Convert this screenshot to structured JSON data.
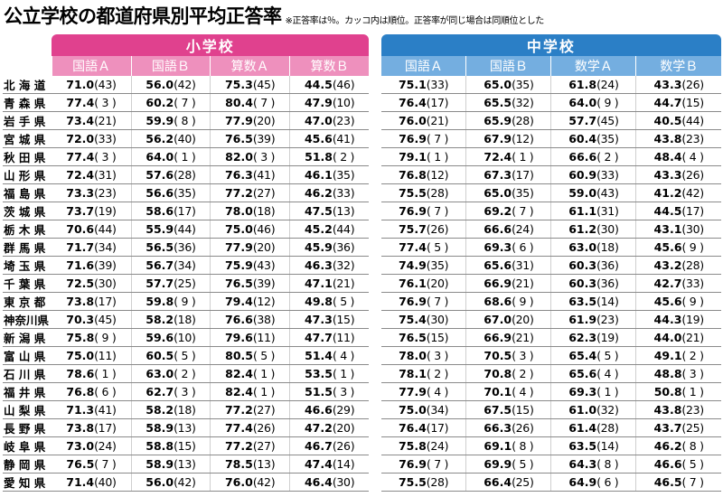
{
  "title": "公立学校の都道府県別平均正答率",
  "note": "※正答率は％。カッコ内は順位。正答率が同じ場合は同順位とした",
  "elementary": {
    "label": "小学校",
    "subjects": [
      "国語Ａ",
      "国語Ｂ",
      "算数Ａ",
      "算数Ｂ"
    ]
  },
  "junior": {
    "label": "中学校",
    "subjects": [
      "国語Ａ",
      "国語Ｂ",
      "数学Ａ",
      "数学Ｂ"
    ]
  },
  "rows": [
    {
      "pref": "北 海 道",
      "el": [
        "71.0",
        "(43)",
        "56.0",
        "(42)",
        "75.3",
        "(45)",
        "44.5",
        "(46)"
      ],
      "jr": [
        "75.1",
        "(33)",
        "65.0",
        "(35)",
        "61.8",
        "(24)",
        "43.3",
        "(26)"
      ]
    },
    {
      "pref": "青 森 県",
      "el": [
        "77.4",
        "( 3 )",
        "60.2",
        "( 7 )",
        "80.4",
        "( 7 )",
        "47.9",
        "(10)"
      ],
      "jr": [
        "76.4",
        "(17)",
        "65.5",
        "(32)",
        "64.0",
        "( 9 )",
        "44.7",
        "(15)"
      ]
    },
    {
      "pref": "岩 手 県",
      "el": [
        "73.4",
        "(21)",
        "59.9",
        "( 8 )",
        "77.9",
        "(20)",
        "47.0",
        "(23)"
      ],
      "jr": [
        "76.0",
        "(21)",
        "65.9",
        "(28)",
        "57.7",
        "(45)",
        "40.5",
        "(44)"
      ]
    },
    {
      "pref": "宮 城 県",
      "el": [
        "72.0",
        "(33)",
        "56.2",
        "(40)",
        "76.5",
        "(39)",
        "45.6",
        "(41)"
      ],
      "jr": [
        "76.9",
        "( 7 )",
        "67.9",
        "(12)",
        "60.4",
        "(35)",
        "43.8",
        "(23)"
      ]
    },
    {
      "pref": "秋 田 県",
      "el": [
        "77.4",
        "( 3 )",
        "64.0",
        "( 1 )",
        "82.0",
        "( 3 )",
        "51.8",
        "( 2 )"
      ],
      "jr": [
        "79.1",
        "( 1 )",
        "72.4",
        "( 1 )",
        "66.6",
        "( 2 )",
        "48.4",
        "( 4 )"
      ]
    },
    {
      "pref": "山 形 県",
      "el": [
        "72.4",
        "(31)",
        "57.6",
        "(28)",
        "76.3",
        "(41)",
        "46.1",
        "(35)"
      ],
      "jr": [
        "76.8",
        "(12)",
        "67.3",
        "(17)",
        "60.9",
        "(33)",
        "43.3",
        "(26)"
      ]
    },
    {
      "pref": "福 島 県",
      "el": [
        "73.3",
        "(23)",
        "56.6",
        "(35)",
        "77.2",
        "(27)",
        "46.2",
        "(33)"
      ],
      "jr": [
        "75.5",
        "(28)",
        "65.0",
        "(35)",
        "59.0",
        "(43)",
        "41.2",
        "(42)"
      ]
    },
    {
      "pref": "茨 城 県",
      "el": [
        "73.7",
        "(19)",
        "58.6",
        "(17)",
        "78.0",
        "(18)",
        "47.5",
        "(13)"
      ],
      "jr": [
        "76.9",
        "( 7 )",
        "69.2",
        "( 7 )",
        "61.1",
        "(31)",
        "44.5",
        "(17)"
      ]
    },
    {
      "pref": "栃 木 県",
      "el": [
        "70.6",
        "(44)",
        "55.9",
        "(44)",
        "75.0",
        "(46)",
        "45.2",
        "(44)"
      ],
      "jr": [
        "75.7",
        "(26)",
        "66.6",
        "(24)",
        "61.2",
        "(30)",
        "43.1",
        "(30)"
      ]
    },
    {
      "pref": "群 馬 県",
      "el": [
        "71.7",
        "(34)",
        "56.5",
        "(36)",
        "77.9",
        "(20)",
        "45.9",
        "(36)"
      ],
      "jr": [
        "77.4",
        "( 5 )",
        "69.3",
        "( 6 )",
        "63.0",
        "(18)",
        "45.6",
        "( 9 )"
      ]
    },
    {
      "pref": "埼 玉 県",
      "el": [
        "71.6",
        "(39)",
        "56.7",
        "(34)",
        "75.9",
        "(43)",
        "46.3",
        "(32)"
      ],
      "jr": [
        "74.9",
        "(35)",
        "65.6",
        "(31)",
        "60.3",
        "(36)",
        "43.2",
        "(28)"
      ]
    },
    {
      "pref": "千 葉 県",
      "el": [
        "72.5",
        "(30)",
        "57.7",
        "(25)",
        "76.5",
        "(39)",
        "47.1",
        "(21)"
      ],
      "jr": [
        "76.1",
        "(20)",
        "66.9",
        "(21)",
        "60.3",
        "(36)",
        "42.7",
        "(33)"
      ]
    },
    {
      "pref": "東 京 都",
      "el": [
        "73.8",
        "(17)",
        "59.8",
        "( 9 )",
        "79.4",
        "(12)",
        "49.8",
        "( 5 )"
      ],
      "jr": [
        "76.9",
        "( 7 )",
        "68.6",
        "( 9 )",
        "63.5",
        "(14)",
        "45.6",
        "( 9 )"
      ]
    },
    {
      "pref": "神奈川県",
      "el": [
        "70.3",
        "(45)",
        "58.2",
        "(18)",
        "76.6",
        "(38)",
        "47.3",
        "(15)"
      ],
      "jr": [
        "75.4",
        "(30)",
        "67.0",
        "(20)",
        "61.9",
        "(23)",
        "44.3",
        "(19)"
      ]
    },
    {
      "pref": "新 潟 県",
      "el": [
        "75.8",
        "( 9 )",
        "59.6",
        "(10)",
        "79.6",
        "(11)",
        "47.7",
        "(11)"
      ],
      "jr": [
        "76.5",
        "(15)",
        "66.9",
        "(21)",
        "62.3",
        "(19)",
        "44.0",
        "(21)"
      ]
    },
    {
      "pref": "富 山 県",
      "el": [
        "75.0",
        "(11)",
        "60.5",
        "( 5 )",
        "80.5",
        "( 5 )",
        "51.4",
        "( 4 )"
      ],
      "jr": [
        "78.0",
        "( 3 )",
        "70.5",
        "( 3 )",
        "65.4",
        "( 5 )",
        "49.1",
        "( 2 )"
      ]
    },
    {
      "pref": "石 川 県",
      "el": [
        "78.6",
        "( 1 )",
        "63.0",
        "( 2 )",
        "82.4",
        "( 1 )",
        "53.5",
        "( 1 )"
      ],
      "jr": [
        "78.1",
        "( 2 )",
        "70.8",
        "( 2 )",
        "65.6",
        "( 4 )",
        "48.8",
        "( 3 )"
      ]
    },
    {
      "pref": "福 井 県",
      "el": [
        "76.8",
        "( 6 )",
        "62.7",
        "( 3 )",
        "82.4",
        "( 1 )",
        "51.5",
        "( 3 )"
      ],
      "jr": [
        "77.9",
        "( 4 )",
        "70.1",
        "( 4 )",
        "69.3",
        "( 1 )",
        "50.8",
        "( 1 )"
      ]
    },
    {
      "pref": "山 梨 県",
      "el": [
        "71.3",
        "(41)",
        "58.2",
        "(18)",
        "77.2",
        "(27)",
        "46.6",
        "(29)"
      ],
      "jr": [
        "75.0",
        "(34)",
        "67.5",
        "(15)",
        "61.0",
        "(32)",
        "43.8",
        "(23)"
      ]
    },
    {
      "pref": "長 野 県",
      "el": [
        "73.8",
        "(17)",
        "58.9",
        "(13)",
        "77.4",
        "(26)",
        "47.2",
        "(20)"
      ],
      "jr": [
        "76.4",
        "(17)",
        "66.3",
        "(26)",
        "61.4",
        "(28)",
        "43.7",
        "(25)"
      ]
    },
    {
      "pref": "岐 阜 県",
      "el": [
        "73.0",
        "(24)",
        "58.8",
        "(15)",
        "77.2",
        "(27)",
        "46.7",
        "(26)"
      ],
      "jr": [
        "75.8",
        "(24)",
        "69.1",
        "( 8 )",
        "63.5",
        "(14)",
        "46.2",
        "( 8 )"
      ]
    },
    {
      "pref": "静 岡 県",
      "el": [
        "76.5",
        "( 7 )",
        "58.9",
        "(13)",
        "78.5",
        "(13)",
        "47.4",
        "(14)"
      ],
      "jr": [
        "76.9",
        "( 7 )",
        "69.9",
        "( 5 )",
        "64.3",
        "( 8 )",
        "46.6",
        "( 5 )"
      ]
    },
    {
      "pref": "愛 知 県",
      "el": [
        "71.4",
        "(40)",
        "56.0",
        "(42)",
        "76.0",
        "(42)",
        "46.4",
        "(30)"
      ],
      "jr": [
        "75.5",
        "(28)",
        "66.4",
        "(25)",
        "64.9",
        "( 6 )",
        "46.5",
        "( 7 )"
      ]
    }
  ]
}
